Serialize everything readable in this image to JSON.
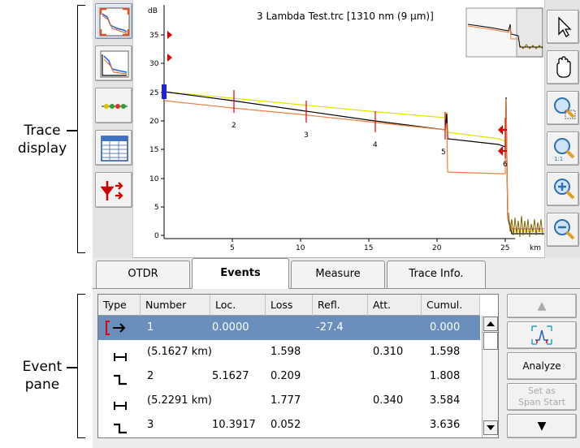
{
  "callouts": {
    "trace_display": [
      "Trace",
      "display"
    ],
    "event_pane": [
      "Event",
      "pane"
    ]
  },
  "graph": {
    "title": "3 Lambda Test.trc [1310 nm (9 µm)]",
    "y_unit": "dB",
    "x_unit": "km",
    "y_ticks": [
      "0",
      "5",
      "10",
      "15",
      "20",
      "25",
      "30",
      "35"
    ],
    "x_ticks": [
      "5",
      "10",
      "15",
      "20",
      "25"
    ],
    "event_markers": [
      "2",
      "3",
      "4",
      "5",
      "6"
    ],
    "colors": {
      "black": "#000000",
      "yellow": "#e0e000",
      "orange": "#f08040",
      "marker": "#e00000",
      "cursor": "#2020e0"
    }
  },
  "left_toolbar": {
    "icons": [
      "full-view-icon",
      "trace-zoom-icon",
      "event-markers-icon",
      "table-view-icon",
      "event-tool-icon"
    ]
  },
  "right_toolbar": {
    "icons": [
      "pointer-icon",
      "pan-hand-icon",
      "zoom-area-icon",
      "zoom-1to1-icon",
      "zoom-in-icon",
      "zoom-out-icon"
    ]
  },
  "tabs": [
    {
      "label": "OTDR"
    },
    {
      "label": "Events",
      "active": true
    },
    {
      "label": "Measure"
    },
    {
      "label": "Trace Info."
    }
  ],
  "table": {
    "headers": [
      "Type",
      "Number",
      "Loc.",
      "Loss",
      "Refl.",
      "Att.",
      "Cumul."
    ],
    "rows": [
      {
        "type": "launch-icon",
        "number": "1",
        "loc": "0.0000",
        "loss": "",
        "refl": "-27.4",
        "att": "",
        "cumul": "0.000",
        "selected": true
      },
      {
        "type": "span-icon",
        "number": "(5.1627 km)",
        "loc": "",
        "loss": "1.598",
        "refl": "",
        "att": "0.310",
        "cumul": "1.598"
      },
      {
        "type": "step-icon",
        "number": "2",
        "loc": "5.1627",
        "loss": "0.209",
        "refl": "",
        "att": "",
        "cumul": "1.808"
      },
      {
        "type": "span-icon",
        "number": "(5.2291 km)",
        "loc": "",
        "loss": "1.777",
        "refl": "",
        "att": "0.340",
        "cumul": "3.584"
      },
      {
        "type": "step-icon",
        "number": "3",
        "loc": "10.3917",
        "loss": "0.052",
        "refl": "",
        "att": "",
        "cumul": "3.636"
      }
    ]
  },
  "side_buttons": {
    "up": "▲",
    "fit": "fit-icon",
    "analyze": "Analyze",
    "set_span_start": [
      "Set as",
      "Span Start"
    ],
    "down": "▼"
  }
}
